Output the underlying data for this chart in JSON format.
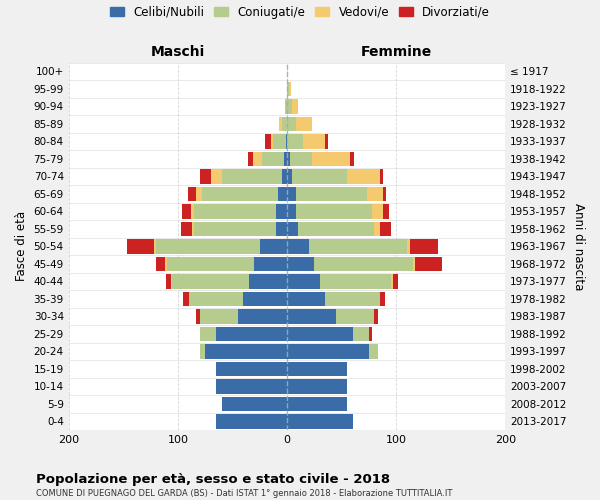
{
  "age_groups": [
    "0-4",
    "5-9",
    "10-14",
    "15-19",
    "20-24",
    "25-29",
    "30-34",
    "35-39",
    "40-44",
    "45-49",
    "50-54",
    "55-59",
    "60-64",
    "65-69",
    "70-74",
    "75-79",
    "80-84",
    "85-89",
    "90-94",
    "95-99",
    "100+"
  ],
  "birth_years": [
    "2013-2017",
    "2008-2012",
    "2003-2007",
    "1998-2002",
    "1993-1997",
    "1988-1992",
    "1983-1987",
    "1978-1982",
    "1973-1977",
    "1968-1972",
    "1963-1967",
    "1958-1962",
    "1953-1957",
    "1948-1952",
    "1943-1947",
    "1938-1942",
    "1933-1937",
    "1928-1932",
    "1923-1927",
    "1918-1922",
    "≤ 1917"
  ],
  "colors": {
    "celibi": "#3a6ca8",
    "coniugati": "#b5cc8e",
    "vedovi": "#f5c96e",
    "divorziati": "#cc2222"
  },
  "males": {
    "celibi": [
      65,
      60,
      65,
      65,
      75,
      65,
      45,
      40,
      35,
      30,
      25,
      10,
      10,
      8,
      5,
      3,
      1,
      0,
      0,
      0,
      0
    ],
    "coniugati": [
      0,
      0,
      0,
      0,
      5,
      15,
      35,
      50,
      70,
      80,
      95,
      75,
      75,
      70,
      55,
      20,
      12,
      5,
      2,
      0,
      0
    ],
    "vedovi": [
      0,
      0,
      0,
      0,
      0,
      0,
      0,
      0,
      1,
      2,
      2,
      2,
      3,
      5,
      10,
      8,
      2,
      2,
      0,
      0,
      0
    ],
    "divorziati": [
      0,
      0,
      0,
      0,
      0,
      0,
      3,
      5,
      5,
      8,
      25,
      10,
      8,
      8,
      10,
      5,
      5,
      0,
      0,
      0,
      0
    ]
  },
  "females": {
    "celibi": [
      60,
      55,
      55,
      55,
      75,
      60,
      45,
      35,
      30,
      25,
      20,
      10,
      8,
      8,
      5,
      3,
      0,
      0,
      0,
      0,
      0
    ],
    "coniugati": [
      0,
      0,
      0,
      0,
      8,
      15,
      35,
      50,
      65,
      90,
      90,
      70,
      70,
      65,
      50,
      20,
      15,
      8,
      5,
      2,
      0
    ],
    "vedovi": [
      0,
      0,
      0,
      0,
      0,
      0,
      0,
      0,
      2,
      2,
      3,
      5,
      10,
      15,
      30,
      35,
      20,
      15,
      5,
      2,
      0
    ],
    "divorziati": [
      0,
      0,
      0,
      0,
      0,
      3,
      3,
      5,
      5,
      25,
      25,
      10,
      5,
      3,
      3,
      3,
      3,
      0,
      0,
      0,
      0
    ]
  },
  "xlim": 200,
  "title": "Popolazione per età, sesso e stato civile - 2018",
  "subtitle": "COMUNE DI PUEGNAGO DEL GARDA (BS) - Dati ISTAT 1° gennaio 2018 - Elaborazione TUTTITALIA.IT",
  "ylabel": "Fasce di età",
  "ylabel_right": "Anni di nascita",
  "xlabel_left": "Maschi",
  "xlabel_right": "Femmine",
  "legend_labels": [
    "Celibi/Nubili",
    "Coniugati/e",
    "Vedovi/e",
    "Divorziati/e"
  ],
  "bg_color": "#f0f0f0",
  "plot_bg": "#ffffff"
}
